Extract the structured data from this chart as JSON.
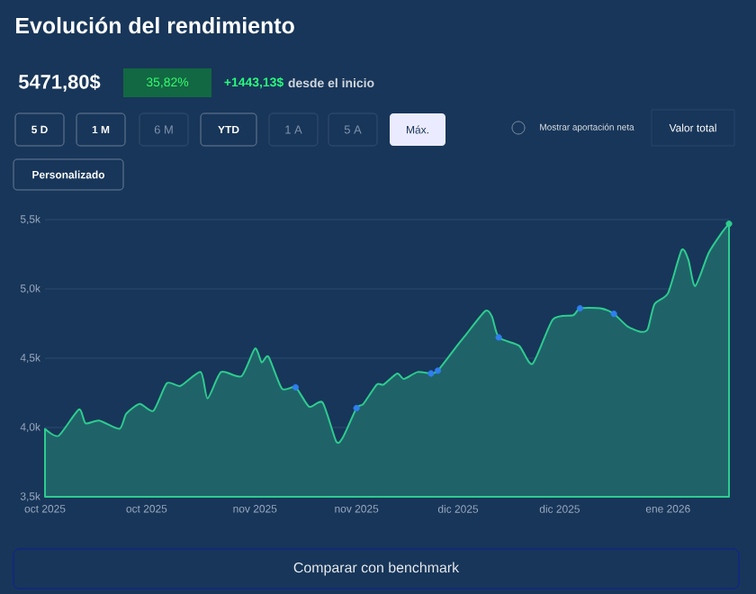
{
  "chart_data": {
    "type": "area",
    "title": "Evolución del rendimiento",
    "annotations": [
      "5471,80$",
      "35,82%",
      "+1443,13$",
      "desde el inicio",
      "5 D",
      "1 M",
      "6 M",
      "YTD",
      "1 A",
      "5 A",
      "Máx.",
      "Personalizado",
      "Mostrar aportación neta",
      "Valor total",
      "Comparar con benchmark"
    ],
    "x": [
      "2025-10-01",
      "2025-10-03",
      "2025-10-06",
      "2025-10-07",
      "2025-10-09",
      "2025-10-12",
      "2025-10-13",
      "2025-10-15",
      "2025-10-17",
      "2025-10-19",
      "2025-10-21",
      "2025-10-24",
      "2025-10-25",
      "2025-10-27",
      "2025-10-30",
      "2025-11-01",
      "2025-11-02",
      "2025-11-03",
      "2025-11-05",
      "2025-11-07",
      "2025-11-09",
      "2025-11-11",
      "2025-11-13",
      "2025-11-14",
      "2025-11-16",
      "2025-11-17",
      "2025-11-19",
      "2025-11-20",
      "2025-11-22",
      "2025-11-23",
      "2025-11-25",
      "2025-11-27",
      "2025-11-28",
      "2025-12-01",
      "2025-12-02",
      "2025-12-05",
      "2025-12-06",
      "2025-12-07",
      "2025-12-10",
      "2025-12-12",
      "2025-12-15",
      "2025-12-18",
      "2025-12-19",
      "2025-12-22",
      "2025-12-24",
      "2025-12-26",
      "2025-12-28",
      "2025-12-29",
      "2025-12-30",
      "2026-01-01",
      "2026-01-03",
      "2026-01-04",
      "2026-01-05",
      "2026-01-07",
      "2026-01-09",
      "2026-01-10"
    ],
    "series": [
      {
        "color": "#2ecc8f",
        "values": [
          3990,
          3940,
          4130,
          4030,
          4050,
          3990,
          4100,
          4170,
          4120,
          4320,
          4300,
          4400,
          4210,
          4400,
          4370,
          4570,
          4470,
          4510,
          4280,
          4290,
          4150,
          4180,
          3900,
          3930,
          4140,
          4170,
          4310,
          4310,
          4390,
          4350,
          4400,
          4390,
          4410,
          4600,
          4660,
          4840,
          4800,
          4650,
          4590,
          4460,
          4780,
          4810,
          4860,
          4860,
          4820,
          4730,
          4690,
          4710,
          4890,
          4970,
          5280,
          5210,
          5020,
          5260,
          5410,
          5470
        ]
      },
      {
        "type": "scatter",
        "marker": "circle",
        "color": "#2f7ff0",
        "x": [
          "2025-11-07",
          "2025-11-16",
          "2025-11-27",
          "2025-11-28",
          "2025-12-07",
          "2025-12-19",
          "2025-12-24"
        ],
        "values": [
          4290,
          4140,
          4390,
          4410,
          4650,
          4860,
          4820
        ]
      },
      {
        "type": "scatter",
        "marker": "circle",
        "color": "#2ecc8f",
        "x": [
          "2026-01-10"
        ],
        "values": [
          5470
        ]
      }
    ],
    "xlim": [
      "2025-10-01",
      "2026-01-10"
    ],
    "ylim": [
      3500,
      5500
    ],
    "xticks": [
      {
        "value": "2025-10-01",
        "label": "oct 2025"
      },
      {
        "value": "2025-10-16",
        "label": "oct 2025"
      },
      {
        "value": "2025-11-01",
        "label": "nov 2025"
      },
      {
        "value": "2025-11-16",
        "label": "nov 2025"
      },
      {
        "value": "2025-12-01",
        "label": "dic 2025"
      },
      {
        "value": "2025-12-16",
        "label": "dic 2025"
      },
      {
        "value": "2026-01-01",
        "label": "ene 2026"
      }
    ],
    "yticks": [
      {
        "value": 3500,
        "label": "3,5k"
      },
      {
        "value": 4000,
        "label": "4,0k"
      },
      {
        "value": 4500,
        "label": "4,5k"
      },
      {
        "value": 5000,
        "label": "5,0k"
      },
      {
        "value": 5500,
        "label": "5,5k"
      }
    ],
    "grid": "y"
  }
}
